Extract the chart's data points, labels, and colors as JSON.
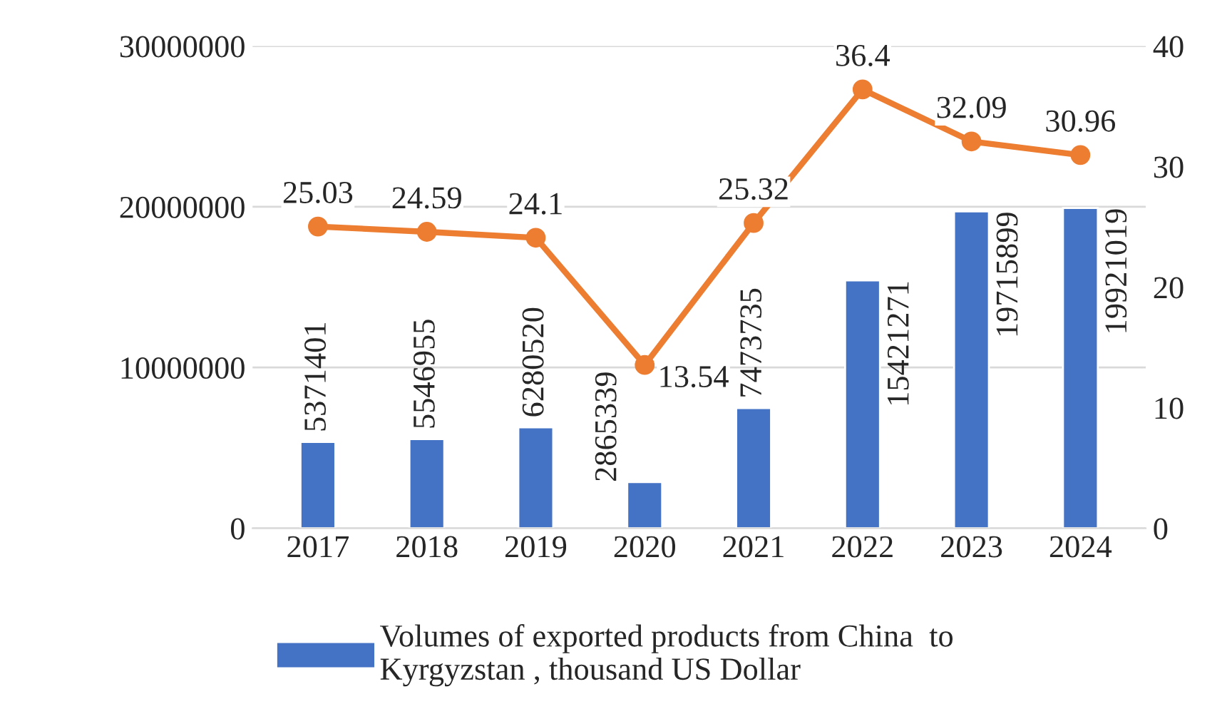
{
  "chart_data": {
    "type": "bar",
    "categories": [
      "2017",
      "2018",
      "2019",
      "2020",
      "2021",
      "2022",
      "2023",
      "2024"
    ],
    "series": [
      {
        "name": "Volumes of exported products from China  to Kyrgyzstan , thousand US Dollar",
        "color": "#4472c4",
        "values": [
          5371401,
          5546955,
          6280520,
          2865339,
          7473735,
          15421271,
          19715899,
          19921019
        ]
      },
      {
        "type": "line",
        "axis": "y2",
        "color": "#ed7d31",
        "values": [
          25.03,
          24.59,
          24.1,
          13.54,
          25.32,
          36.4,
          32.09,
          30.96
        ],
        "marker": "circle"
      }
    ],
    "ylim": [
      0,
      30000000
    ],
    "yticks": [
      0,
      10000000,
      20000000,
      30000000
    ],
    "y2lim": [
      0,
      40
    ],
    "y2ticks": [
      0,
      10,
      20,
      30,
      40
    ],
    "grid": "y",
    "legend": "bottom",
    "data_labels": true
  }
}
